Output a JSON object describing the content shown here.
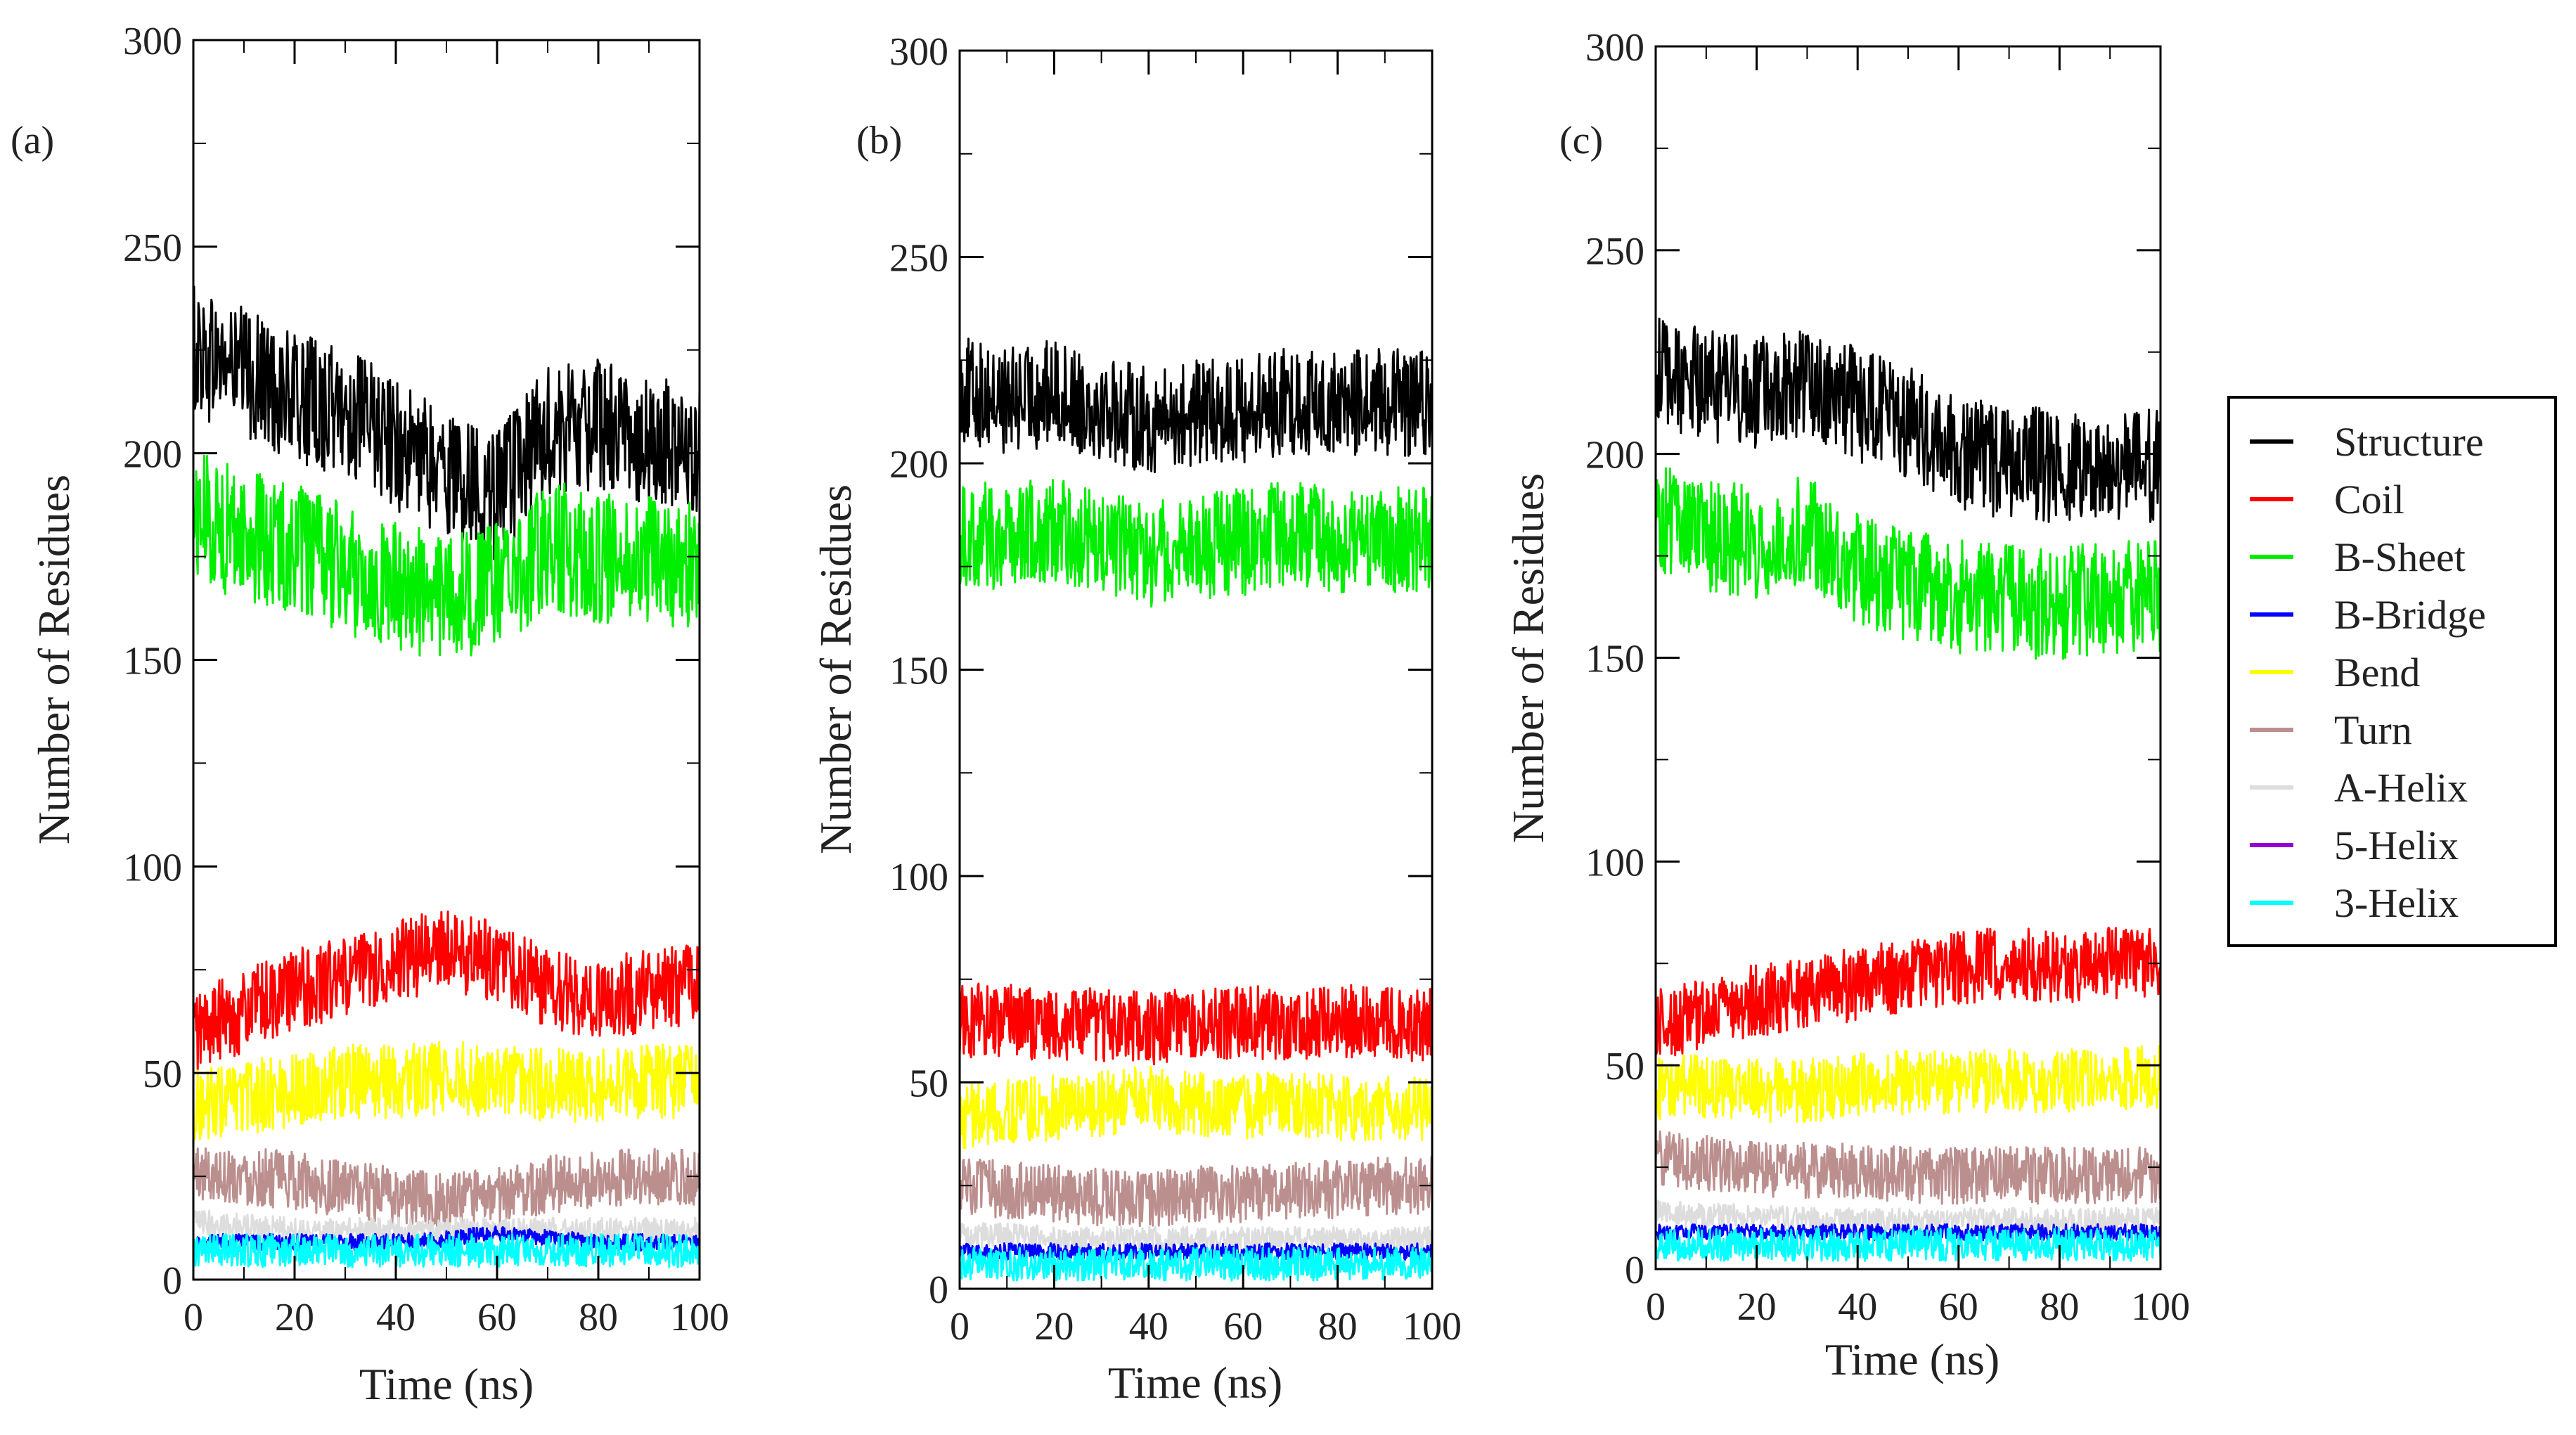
{
  "chart_data": [
    {
      "type": "line",
      "panel_label": "(a)",
      "xlabel": "Time (ns)",
      "ylabel": "Number of Residues",
      "xlim": [
        0,
        100
      ],
      "ylim": [
        0,
        300
      ],
      "x_ticks": [
        "0",
        "20",
        "40",
        "60",
        "80",
        "100"
      ],
      "y_ticks": [
        "0",
        "50",
        "100",
        "150",
        "200",
        "250",
        "300"
      ],
      "series": [
        {
          "name": "Structure",
          "color": "#000000",
          "x": [
            0,
            10,
            20,
            30,
            40,
            50,
            60,
            70,
            80,
            90,
            100
          ],
          "values": [
            225,
            220,
            213,
            210,
            202,
            195,
            190,
            205,
            207,
            203,
            200
          ],
          "noise": 16
        },
        {
          "name": "B-Sheet",
          "color": "#00ee00",
          "x": [
            0,
            10,
            20,
            30,
            40,
            50,
            60,
            70,
            80,
            90,
            100
          ],
          "values": [
            185,
            180,
            177,
            172,
            168,
            165,
            168,
            178,
            175,
            174,
            173
          ],
          "noise": 16
        },
        {
          "name": "Coil",
          "color": "#ff0000",
          "x": [
            0,
            10,
            20,
            30,
            40,
            50,
            60,
            70,
            80,
            90,
            100
          ],
          "values": [
            60,
            65,
            70,
            73,
            77,
            80,
            77,
            70,
            68,
            70,
            72
          ],
          "noise": 10
        },
        {
          "name": "Bend",
          "color": "#ffff00",
          "x": [
            0,
            10,
            20,
            30,
            40,
            50,
            60,
            70,
            80,
            90,
            100
          ],
          "values": [
            42,
            44,
            46,
            48,
            48,
            49,
            48,
            47,
            47,
            48,
            48
          ],
          "noise": 9
        },
        {
          "name": "Turn",
          "color": "#bc8f8f",
          "x": [
            0,
            10,
            20,
            30,
            40,
            50,
            60,
            70,
            80,
            90,
            100
          ],
          "values": [
            26,
            25,
            24,
            22,
            20,
            19,
            20,
            23,
            24,
            25,
            25
          ],
          "noise": 7
        },
        {
          "name": "A-Helix",
          "color": "#dddddd",
          "x": [
            0,
            10,
            20,
            30,
            40,
            50,
            60,
            70,
            80,
            90,
            100
          ],
          "values": [
            14,
            13,
            12,
            12,
            12,
            12,
            12,
            12,
            12,
            12,
            12
          ],
          "noise": 3
        },
        {
          "name": "B-Bridge",
          "color": "#0000ff",
          "x": [
            0,
            10,
            20,
            30,
            40,
            50,
            60,
            70,
            80,
            90,
            100
          ],
          "values": [
            9,
            9,
            9,
            9,
            9,
            10,
            11,
            10,
            9,
            9,
            9
          ],
          "noise": 2
        },
        {
          "name": "5-Helix",
          "color": "#9400d3",
          "x": [
            0,
            100
          ],
          "values": [
            0,
            0
          ],
          "noise": 0
        },
        {
          "name": "3-Helix",
          "color": "#00ffff",
          "x": [
            0,
            10,
            20,
            30,
            40,
            50,
            60,
            70,
            80,
            90,
            100
          ],
          "values": [
            7,
            7,
            7,
            7,
            7,
            7,
            7,
            7,
            7,
            7,
            7
          ],
          "noise": 4
        }
      ]
    },
    {
      "type": "line",
      "panel_label": "(b)",
      "xlabel": "Time (ns)",
      "ylabel": "Number of Residues",
      "xlim": [
        0,
        100
      ],
      "ylim": [
        0,
        300
      ],
      "x_ticks": [
        "0",
        "20",
        "40",
        "60",
        "80",
        "100"
      ],
      "y_ticks": [
        "0",
        "50",
        "100",
        "150",
        "200",
        "250",
        "300"
      ],
      "series": [
        {
          "name": "Structure",
          "color": "#000000",
          "x": [
            0,
            10,
            20,
            30,
            40,
            50,
            60,
            70,
            80,
            90,
            100
          ],
          "values": [
            218,
            215,
            217,
            214,
            210,
            212,
            213,
            215,
            214,
            215,
            214
          ],
          "noise": 13
        },
        {
          "name": "B-Sheet",
          "color": "#00ee00",
          "x": [
            0,
            10,
            20,
            30,
            40,
            50,
            60,
            70,
            80,
            90,
            100
          ],
          "values": [
            183,
            182,
            184,
            180,
            178,
            180,
            181,
            183,
            181,
            182,
            181
          ],
          "noise": 13
        },
        {
          "name": "Coil",
          "color": "#ff0000",
          "x": [
            0,
            10,
            20,
            30,
            40,
            50,
            60,
            70,
            80,
            90,
            100
          ],
          "values": [
            65,
            65,
            64,
            64,
            63,
            64,
            65,
            64,
            65,
            64,
            64
          ],
          "noise": 9
        },
        {
          "name": "Bend",
          "color": "#ffff00",
          "x": [
            0,
            10,
            20,
            30,
            40,
            50,
            60,
            70,
            80,
            90,
            100
          ],
          "values": [
            42,
            43,
            44,
            45,
            46,
            45,
            44,
            45,
            44,
            44,
            44
          ],
          "noise": 8
        },
        {
          "name": "Turn",
          "color": "#bc8f8f",
          "x": [
            0,
            10,
            20,
            30,
            40,
            50,
            60,
            70,
            80,
            90,
            100
          ],
          "values": [
            25,
            24,
            23,
            22,
            22,
            23,
            23,
            24,
            24,
            25,
            25
          ],
          "noise": 7
        },
        {
          "name": "A-Helix",
          "color": "#dddddd",
          "x": [
            0,
            10,
            20,
            30,
            40,
            50,
            60,
            70,
            80,
            90,
            100
          ],
          "values": [
            13,
            13,
            12,
            12,
            12,
            12,
            12,
            12,
            12,
            12,
            12
          ],
          "noise": 3
        },
        {
          "name": "B-Bridge",
          "color": "#0000ff",
          "x": [
            0,
            10,
            20,
            30,
            40,
            50,
            60,
            70,
            80,
            90,
            100
          ],
          "values": [
            9,
            9,
            9,
            9,
            9,
            9,
            9,
            9,
            9,
            9,
            9
          ],
          "noise": 2
        },
        {
          "name": "5-Helix",
          "color": "#9400d3",
          "x": [
            0,
            100
          ],
          "values": [
            0,
            0
          ],
          "noise": 0
        },
        {
          "name": "3-Helix",
          "color": "#00ffff",
          "x": [
            0,
            10,
            20,
            30,
            40,
            50,
            60,
            70,
            80,
            90,
            100
          ],
          "values": [
            6,
            6,
            6,
            6,
            6,
            6,
            6,
            6,
            6,
            6,
            6
          ],
          "noise": 4
        }
      ]
    },
    {
      "type": "line",
      "panel_label": "(c)",
      "xlabel": "Time (ns)",
      "ylabel": "Number of Residues",
      "xlim": [
        0,
        100
      ],
      "ylim": [
        0,
        300
      ],
      "x_ticks": [
        "0",
        "20",
        "40",
        "60",
        "80",
        "100"
      ],
      "y_ticks": [
        "0",
        "50",
        "100",
        "150",
        "200",
        "250",
        "300"
      ],
      "series": [
        {
          "name": "Structure",
          "color": "#000000",
          "x": [
            0,
            10,
            20,
            30,
            40,
            50,
            60,
            70,
            80,
            90,
            100
          ],
          "values": [
            220,
            217,
            215,
            218,
            212,
            208,
            200,
            198,
            197,
            198,
            197
          ],
          "noise": 14
        },
        {
          "name": "B-Sheet",
          "color": "#00ee00",
          "x": [
            0,
            10,
            20,
            30,
            40,
            50,
            60,
            70,
            80,
            90,
            100
          ],
          "values": [
            185,
            180,
            178,
            182,
            172,
            168,
            165,
            164,
            163,
            165,
            165
          ],
          "noise": 14
        },
        {
          "name": "Coil",
          "color": "#ff0000",
          "x": [
            0,
            10,
            20,
            30,
            40,
            50,
            60,
            70,
            80,
            90,
            100
          ],
          "values": [
            60,
            62,
            66,
            68,
            70,
            72,
            74,
            75,
            74,
            75,
            76
          ],
          "noise": 9
        },
        {
          "name": "Bend",
          "color": "#ffff00",
          "x": [
            0,
            10,
            20,
            30,
            40,
            50,
            60,
            70,
            80,
            90,
            100
          ],
          "values": [
            44,
            45,
            44,
            44,
            45,
            46,
            46,
            46,
            46,
            47,
            47
          ],
          "noise": 8
        },
        {
          "name": "Turn",
          "color": "#bc8f8f",
          "x": [
            0,
            10,
            20,
            30,
            40,
            50,
            60,
            70,
            80,
            90,
            100
          ],
          "values": [
            27,
            26,
            25,
            24,
            24,
            23,
            23,
            23,
            23,
            23,
            23
          ],
          "noise": 7
        },
        {
          "name": "A-Helix",
          "color": "#dddddd",
          "x": [
            0,
            10,
            20,
            30,
            40,
            50,
            60,
            70,
            80,
            90,
            100
          ],
          "values": [
            14,
            13,
            13,
            12,
            12,
            12,
            12,
            12,
            12,
            12,
            12
          ],
          "noise": 3
        },
        {
          "name": "B-Bridge",
          "color": "#0000ff",
          "x": [
            0,
            10,
            20,
            30,
            40,
            50,
            60,
            70,
            80,
            90,
            100
          ],
          "values": [
            9,
            9,
            9,
            9,
            9,
            9,
            9,
            9,
            9,
            9,
            9
          ],
          "noise": 2
        },
        {
          "name": "5-Helix",
          "color": "#9400d3",
          "x": [
            0,
            100
          ],
          "values": [
            0,
            0
          ],
          "noise": 0
        },
        {
          "name": "3-Helix",
          "color": "#00ffff",
          "x": [
            0,
            10,
            20,
            30,
            40,
            50,
            60,
            70,
            80,
            90,
            100
          ],
          "values": [
            6,
            6,
            6,
            6,
            6,
            6,
            6,
            6,
            6,
            6,
            6
          ],
          "noise": 4
        }
      ]
    }
  ],
  "legend": {
    "placement": "right",
    "entries": [
      {
        "label": "Structure",
        "color": "#000000"
      },
      {
        "label": "Coil",
        "color": "#ff0000"
      },
      {
        "label": "B-Sheet",
        "color": "#00ee00"
      },
      {
        "label": "B-Bridge",
        "color": "#0000ff"
      },
      {
        "label": "Bend",
        "color": "#ffff00"
      },
      {
        "label": "Turn",
        "color": "#bc8f8f"
      },
      {
        "label": "A-Helix",
        "color": "#dddddd"
      },
      {
        "label": "5-Helix",
        "color": "#9400d3"
      },
      {
        "label": "3-Helix",
        "color": "#00ffff"
      }
    ]
  }
}
